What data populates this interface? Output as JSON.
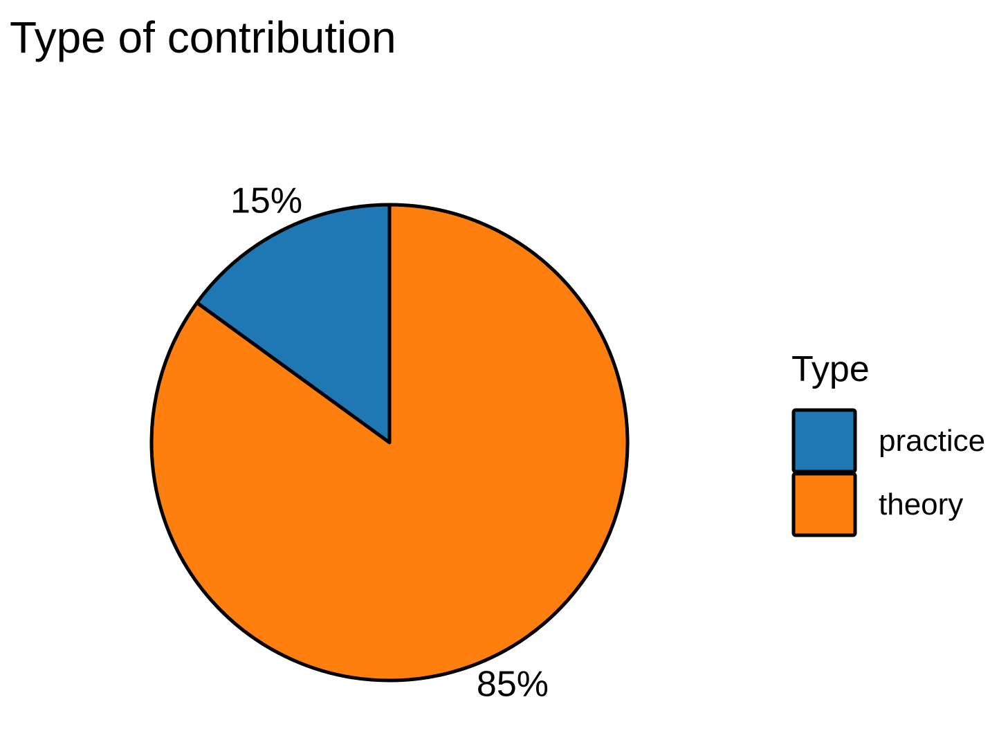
{
  "chart_data": {
    "type": "pie",
    "title": "Type of contribution",
    "legend_title": "Type",
    "legend_position": "right",
    "slices": [
      {
        "name": "practice",
        "value": 15,
        "label": "15%",
        "color": "#1f77b4"
      },
      {
        "name": "theory",
        "value": 85,
        "label": "85%",
        "color": "#ff7f0e"
      }
    ]
  }
}
